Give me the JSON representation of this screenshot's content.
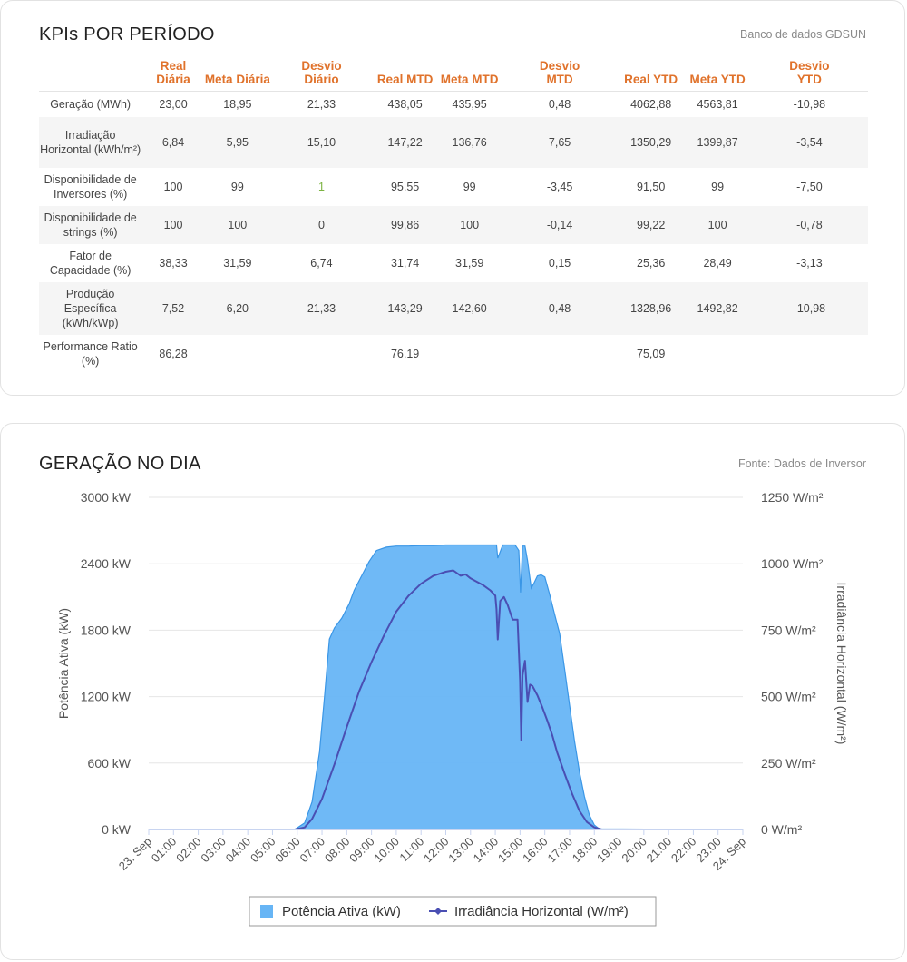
{
  "kpi_card": {
    "title": "KPIs POR PERÍODO",
    "source": "Banco de dados GDSUN",
    "columns": [
      "",
      "Real Diária",
      "Meta Diária",
      "Desvio Diário",
      "Real MTD",
      "Meta MTD",
      "Desvio MTD",
      "Real YTD",
      "Meta YTD",
      "Desvio YTD"
    ],
    "rows": [
      {
        "label": "Geração (MWh)",
        "values": [
          "23,00",
          "18,95",
          "21,33",
          "438,05",
          "435,95",
          "0,48",
          "4062,88",
          "4563,81",
          "-10,98"
        ]
      },
      {
        "label": "Irradiação Horizontal (kWh/m²)",
        "values": [
          "6,84",
          "5,95",
          "15,10",
          "147,22",
          "136,76",
          "7,65",
          "1350,29",
          "1399,87",
          "-3,54"
        ]
      },
      {
        "label": "Disponibilidade de Inversores (%)",
        "values": [
          "100",
          "99",
          "1",
          "95,55",
          "99",
          "-3,45",
          "91,50",
          "99",
          "-7,50"
        ]
      },
      {
        "label": "Disponibilidade de strings (%)",
        "values": [
          "100",
          "100",
          "0",
          "99,86",
          "100",
          "-0,14",
          "99,22",
          "100",
          "-0,78"
        ]
      },
      {
        "label": "Fator de Capacidade (%)",
        "values": [
          "38,33",
          "31,59",
          "6,74",
          "31,74",
          "31,59",
          "0,15",
          "25,36",
          "28,49",
          "-3,13"
        ]
      },
      {
        "label": "Produção Específica (kWh/kWp)",
        "values": [
          "7,52",
          "6,20",
          "21,33",
          "143,29",
          "142,60",
          "0,48",
          "1328,96",
          "1492,82",
          "-10,98"
        ]
      },
      {
        "label": "Performance Ratio (%)",
        "values": [
          "86,28",
          "",
          "",
          "76,19",
          "",
          "",
          "75,09",
          "",
          ""
        ]
      }
    ]
  },
  "chart_card": {
    "title": "GERAÇÃO NO DIA",
    "source": "Fonte: Dados de Inversor"
  },
  "colors": {
    "header_orange": "#e0722b",
    "area_fill": "#67b5f5",
    "area_stroke": "#3a96e6",
    "line": "#4a4fb3",
    "positive_green": "#7cb342"
  },
  "chart_data": {
    "type": "area",
    "title": "",
    "xlabel": "",
    "ylabel_left": "Potência Ativa (kW)",
    "ylabel_right": "Irradiância Horizontal (W/m²)",
    "ylim_left": [
      0,
      3000
    ],
    "ylim_right": [
      0,
      1250
    ],
    "yticks_left": [
      "0 kW",
      "600 kW",
      "1200 kW",
      "1800 kW",
      "2400 kW",
      "3000 kW"
    ],
    "yticks_right": [
      "0 W/m²",
      "250 W/m²",
      "500 W/m²",
      "750 W/m²",
      "1000 W/m²",
      "1250 W/m²"
    ],
    "xlim": [
      0,
      24
    ],
    "xticks": [
      "23. Sep",
      "01:00",
      "02:00",
      "03:00",
      "04:00",
      "05:00",
      "06:00",
      "07:00",
      "08:00",
      "09:00",
      "10:00",
      "11:00",
      "12:00",
      "13:00",
      "14:00",
      "15:00",
      "16:00",
      "17:00",
      "18:00",
      "19:00",
      "20:00",
      "21:00",
      "22:00",
      "23:00",
      "24. Sep"
    ],
    "legend_position": "bottom-center",
    "grid": "horizontal",
    "series": [
      {
        "name": "Potência Ativa (kW)",
        "type": "area",
        "axis": "left",
        "x": [
          0,
          5.9,
          6.3,
          6.6,
          6.9,
          7.1,
          7.3,
          7.5,
          7.8,
          8.1,
          8.3,
          8.6,
          8.9,
          9.2,
          9.6,
          10.0,
          10.5,
          11.0,
          11.5,
          12.0,
          12.5,
          13.0,
          13.5,
          13.9,
          14.05,
          14.1,
          14.3,
          14.6,
          14.8,
          14.95,
          15.02,
          15.1,
          15.2,
          15.3,
          15.45,
          15.55,
          15.7,
          15.85,
          16.0,
          16.2,
          16.4,
          16.6,
          16.8,
          17.0,
          17.2,
          17.4,
          17.6,
          17.8,
          18.0,
          18.2,
          24
        ],
        "y": [
          0,
          0,
          60,
          250,
          700,
          1200,
          1720,
          1820,
          1910,
          2040,
          2160,
          2290,
          2420,
          2520,
          2550,
          2560,
          2560,
          2565,
          2565,
          2570,
          2570,
          2570,
          2570,
          2570,
          2570,
          2450,
          2570,
          2570,
          2570,
          2520,
          2140,
          2560,
          2560,
          2430,
          2180,
          2220,
          2290,
          2300,
          2280,
          2120,
          1940,
          1770,
          1450,
          1120,
          800,
          520,
          300,
          130,
          40,
          5,
          0
        ]
      },
      {
        "name": "Irradiância Horizontal (W/m²)",
        "type": "line",
        "axis": "right",
        "x": [
          0,
          5.9,
          6.3,
          6.6,
          7.0,
          7.5,
          8.0,
          8.5,
          9.0,
          9.5,
          10.0,
          10.5,
          11.0,
          11.5,
          12.0,
          12.3,
          12.6,
          12.8,
          13.0,
          13.2,
          13.5,
          13.8,
          14.0,
          14.05,
          14.1,
          14.2,
          14.35,
          14.5,
          14.7,
          14.9,
          15.0,
          15.05,
          15.1,
          15.2,
          15.3,
          15.4,
          15.5,
          15.7,
          15.9,
          16.1,
          16.3,
          16.5,
          16.8,
          17.1,
          17.4,
          17.7,
          18.0,
          18.3,
          24
        ],
        "y": [
          0,
          0,
          8,
          40,
          115,
          245,
          385,
          520,
          630,
          730,
          820,
          880,
          925,
          955,
          970,
          975,
          955,
          960,
          945,
          935,
          920,
          900,
          880,
          830,
          715,
          860,
          875,
          845,
          790,
          790,
          560,
          335,
          580,
          635,
          480,
          545,
          540,
          505,
          460,
          410,
          355,
          290,
          210,
          135,
          70,
          28,
          8,
          0,
          0
        ]
      }
    ]
  }
}
